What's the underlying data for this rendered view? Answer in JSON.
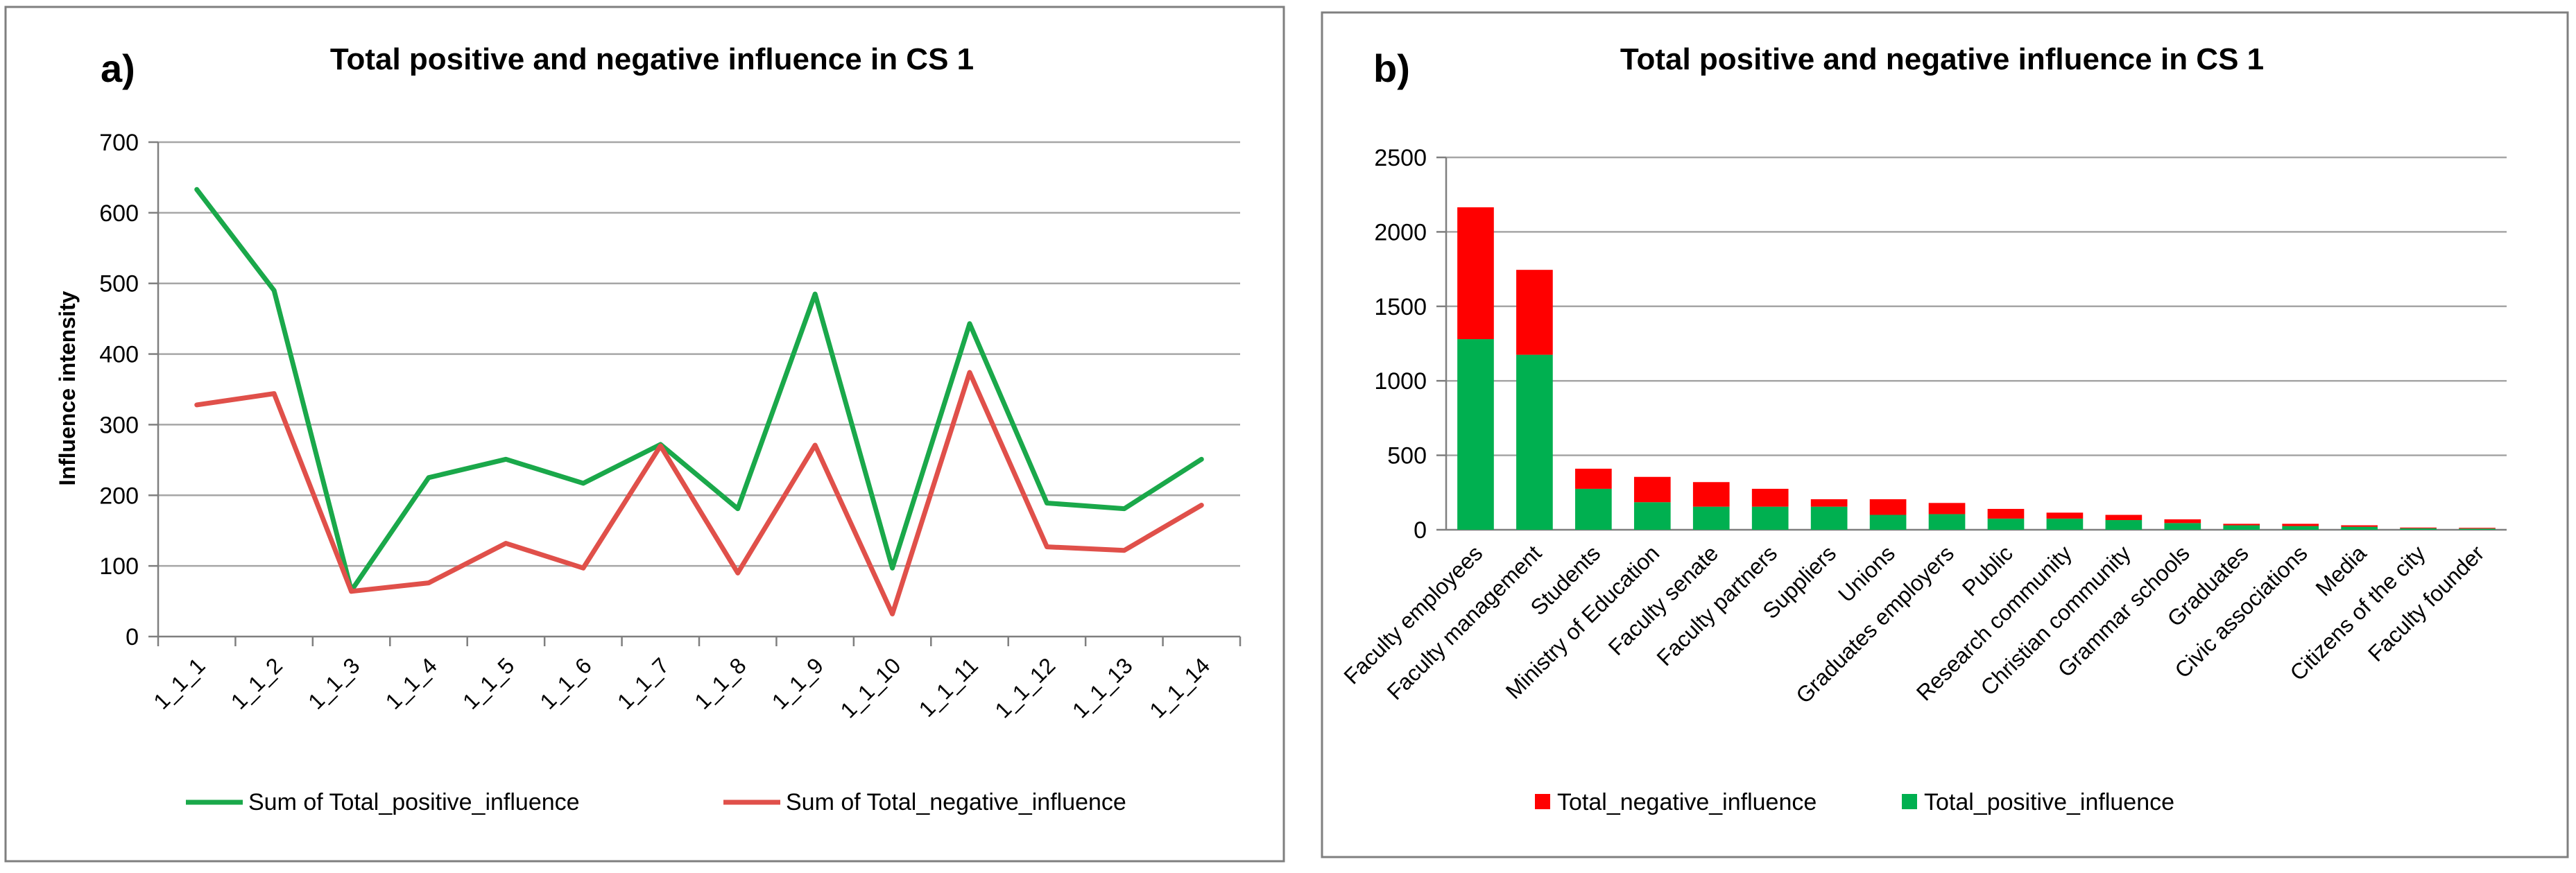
{
  "colors": {
    "positive_line": "#1aa84a",
    "negative_line": "#e0504a",
    "positive_bar": "#00b050",
    "negative_bar": "#ff0000",
    "grid": "#a6a6a6",
    "frame": "#7f7f7f"
  },
  "chart_data": [
    {
      "panel_label": "a)",
      "type": "line",
      "title": "Total positive and negative influence in CS 1",
      "ylabel": "Influence  intensity",
      "xlabel": "",
      "ylim": [
        0,
        700
      ],
      "yticks": [
        0,
        100,
        200,
        300,
        400,
        500,
        600,
        700
      ],
      "grid": true,
      "legend_position": "bottom",
      "categories": [
        "1_1_1",
        "1_1_2",
        "1_1_3",
        "1_1_4",
        "1_1_5",
        "1_1_6",
        "1_1_7",
        "1_1_8",
        "1_1_9",
        "1_1_10",
        "1_1_11",
        "1_1_12",
        "1_1_13",
        "1_1_14"
      ],
      "series": [
        {
          "name": "Sum of Total_positive_influence",
          "color": "#1aa84a",
          "values": [
            633,
            490,
            65,
            225,
            251,
            217,
            272,
            181,
            485,
            97,
            443,
            189,
            181,
            251
          ]
        },
        {
          "name": "Sum of Total_negative_influence",
          "color": "#e0504a",
          "values": [
            328,
            344,
            64,
            76,
            132,
            97,
            270,
            90,
            271,
            32,
            374,
            127,
            122,
            186
          ]
        }
      ]
    },
    {
      "panel_label": "b)",
      "type": "bar",
      "stacked": true,
      "title": "Total positive and negative influence in CS 1",
      "ylabel": "",
      "xlabel": "",
      "ylim": [
        0,
        2500
      ],
      "yticks": [
        0,
        500,
        1000,
        1500,
        2000,
        2500
      ],
      "grid": true,
      "legend_position": "bottom",
      "categories": [
        "Faculty employees",
        "Faculty management",
        "Students",
        "Ministry of Education",
        "Faculty senate",
        "Faculty partners",
        "Suppliers",
        "Unions",
        "Graduates employers",
        "Public",
        "Research community",
        "Christian community",
        "Grammar schools",
        "Graduates",
        "Civic associations",
        "Media",
        "Citizens of the city",
        "Faculty founder"
      ],
      "series": [
        {
          "name": "Total_positive_influence",
          "color": "#00b050",
          "values": [
            1280,
            1175,
            275,
            185,
            155,
            155,
            155,
            100,
            105,
            75,
            75,
            65,
            45,
            30,
            25,
            20,
            10,
            8
          ]
        },
        {
          "name": "Total_negative_influence",
          "color": "#ff0000",
          "values": [
            885,
            570,
            135,
            170,
            165,
            120,
            50,
            105,
            75,
            65,
            40,
            35,
            25,
            10,
            15,
            10,
            5,
            5
          ]
        }
      ],
      "legend_order": [
        "Total_negative_influence",
        "Total_positive_influence"
      ]
    }
  ]
}
